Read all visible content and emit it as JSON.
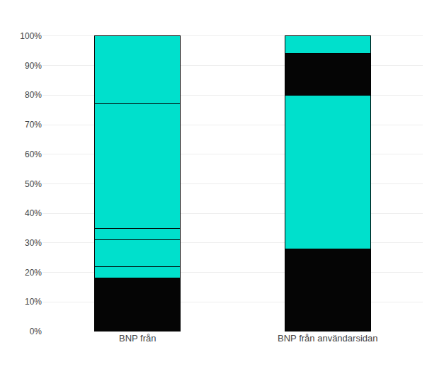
{
  "chart_data": {
    "type": "bar",
    "stacked": true,
    "grid": true,
    "categories": [
      "BNP från",
      "BNP från användarsidan"
    ],
    "series": [
      {
        "color": "#050505",
        "values": [
          18,
          null
        ]
      },
      {
        "color": "#00e0cc",
        "values": [
          4,
          null
        ]
      },
      {
        "color": "#00e0cc",
        "values": [
          9,
          null
        ]
      },
      {
        "color": "#00e0cc",
        "values": [
          4,
          null
        ]
      },
      {
        "color": "#00e0cc",
        "values": [
          42,
          null
        ]
      },
      {
        "color": "#00e0cc",
        "values": [
          23,
          null
        ]
      },
      {
        "color": "#050505",
        "values": [
          null,
          28
        ]
      },
      {
        "color": "#00e0cc",
        "values": [
          null,
          52
        ]
      },
      {
        "color": "#050505",
        "values": [
          null,
          14
        ]
      },
      {
        "color": "#00e0cc",
        "values": [
          null,
          6
        ]
      }
    ],
    "ylim": [
      0,
      105
    ],
    "yticks": [
      {
        "value": 0,
        "label": "0%"
      },
      {
        "value": 10,
        "label": "10%"
      },
      {
        "value": 20,
        "label": "20%"
      },
      {
        "value": 30,
        "label": "30%"
      },
      {
        "value": 40,
        "label": "40%"
      },
      {
        "value": 50,
        "label": "50%"
      },
      {
        "value": 60,
        "label": "60%"
      },
      {
        "value": 70,
        "label": "70%"
      },
      {
        "value": 80,
        "label": "80%"
      },
      {
        "value": 90,
        "label": "90%"
      },
      {
        "value": 100,
        "label": "100%"
      }
    ]
  }
}
